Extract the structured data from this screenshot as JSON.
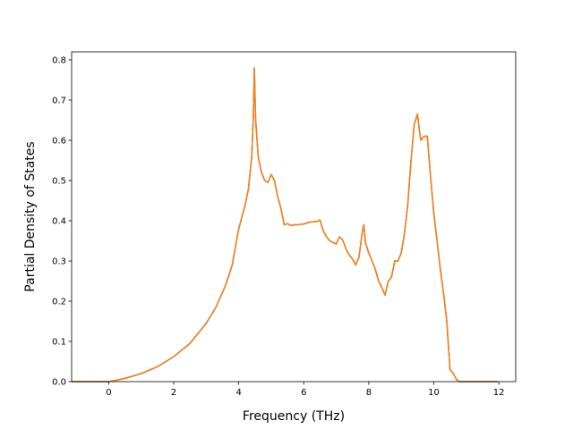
{
  "chart_data": {
    "type": "line",
    "title": "",
    "xlabel": "Frequency (THz)",
    "ylabel": "Partial Density of States",
    "xlim": [
      -1.14,
      12.52
    ],
    "ylim": [
      0.0,
      0.82
    ],
    "xticks": [
      0,
      2,
      4,
      6,
      8,
      10,
      12
    ],
    "xtick_labels": [
      "0",
      "2",
      "4",
      "6",
      "8",
      "10",
      "12"
    ],
    "yticks": [
      0.0,
      0.1,
      0.2,
      0.3,
      0.4,
      0.5,
      0.6,
      0.7,
      0.8
    ],
    "ytick_labels": [
      "0.0",
      "0.1",
      "0.2",
      "0.3",
      "0.4",
      "0.5",
      "0.6",
      "0.7",
      "0.8"
    ],
    "grid": false,
    "legend": "none",
    "series": [
      {
        "color": "#1f77b4",
        "x": [
          -1.12,
          -0.5,
          0.0,
          0.2,
          0.5,
          1.0,
          1.5,
          2.0,
          2.5,
          3.0,
          3.3,
          3.6,
          3.8,
          4.0,
          4.1,
          4.2,
          4.3,
          4.4,
          4.45,
          4.48,
          4.52,
          4.6,
          4.7,
          4.8,
          4.9,
          5.0,
          5.1,
          5.2,
          5.3,
          5.4,
          5.5,
          5.6,
          5.7,
          5.8,
          6.0,
          6.2,
          6.4,
          6.5,
          6.6,
          6.7,
          6.8,
          7.0,
          7.1,
          7.2,
          7.3,
          7.4,
          7.5,
          7.6,
          7.7,
          7.8,
          7.85,
          7.9,
          8.0,
          8.1,
          8.2,
          8.3,
          8.4,
          8.5,
          8.6,
          8.7,
          8.8,
          8.9,
          9.0,
          9.1,
          9.2,
          9.3,
          9.4,
          9.5,
          9.55,
          9.6,
          9.65,
          9.7,
          9.8,
          9.9,
          10.0,
          10.1,
          10.2,
          10.3,
          10.4,
          10.5,
          10.55,
          10.6,
          10.7,
          10.8,
          11.0,
          11.5,
          11.95
        ],
        "y": [
          0.0,
          0.0,
          0.0,
          0.003,
          0.008,
          0.02,
          0.037,
          0.062,
          0.095,
          0.145,
          0.185,
          0.24,
          0.29,
          0.38,
          0.41,
          0.44,
          0.48,
          0.56,
          0.66,
          0.78,
          0.65,
          0.56,
          0.52,
          0.5,
          0.495,
          0.515,
          0.5,
          0.46,
          0.43,
          0.39,
          0.393,
          0.388,
          0.39,
          0.39,
          0.392,
          0.397,
          0.398,
          0.402,
          0.375,
          0.36,
          0.35,
          0.342,
          0.36,
          0.352,
          0.33,
          0.315,
          0.305,
          0.29,
          0.31,
          0.37,
          0.39,
          0.345,
          0.32,
          0.3,
          0.28,
          0.25,
          0.235,
          0.215,
          0.25,
          0.26,
          0.3,
          0.3,
          0.32,
          0.37,
          0.44,
          0.55,
          0.64,
          0.665,
          0.63,
          0.6,
          0.605,
          0.61,
          0.61,
          0.51,
          0.42,
          0.35,
          0.28,
          0.22,
          0.15,
          0.03,
          0.025,
          0.02,
          0.005,
          0.0,
          0.0,
          0.0,
          0.0
        ]
      },
      {
        "color": "#ff7f0e",
        "x": [
          -1.12,
          -0.5,
          0.0,
          0.2,
          0.5,
          1.0,
          1.5,
          2.0,
          2.5,
          3.0,
          3.3,
          3.6,
          3.8,
          4.0,
          4.1,
          4.2,
          4.3,
          4.4,
          4.45,
          4.48,
          4.52,
          4.6,
          4.7,
          4.8,
          4.9,
          5.0,
          5.1,
          5.2,
          5.3,
          5.4,
          5.5,
          5.6,
          5.7,
          5.8,
          6.0,
          6.2,
          6.4,
          6.5,
          6.6,
          6.7,
          6.8,
          7.0,
          7.1,
          7.2,
          7.3,
          7.4,
          7.5,
          7.6,
          7.7,
          7.8,
          7.85,
          7.9,
          8.0,
          8.1,
          8.2,
          8.3,
          8.4,
          8.5,
          8.6,
          8.7,
          8.8,
          8.9,
          9.0,
          9.1,
          9.2,
          9.3,
          9.4,
          9.5,
          9.55,
          9.6,
          9.65,
          9.7,
          9.8,
          9.9,
          10.0,
          10.1,
          10.2,
          10.3,
          10.4,
          10.5,
          10.55,
          10.6,
          10.7,
          10.8,
          11.0,
          11.5,
          11.95
        ],
        "y": [
          0.0,
          0.0,
          0.0,
          0.003,
          0.008,
          0.02,
          0.037,
          0.062,
          0.095,
          0.145,
          0.185,
          0.24,
          0.29,
          0.38,
          0.41,
          0.44,
          0.48,
          0.56,
          0.66,
          0.78,
          0.65,
          0.56,
          0.52,
          0.5,
          0.495,
          0.515,
          0.5,
          0.46,
          0.43,
          0.39,
          0.393,
          0.388,
          0.39,
          0.39,
          0.392,
          0.397,
          0.398,
          0.402,
          0.375,
          0.36,
          0.35,
          0.342,
          0.36,
          0.352,
          0.33,
          0.315,
          0.305,
          0.29,
          0.31,
          0.37,
          0.39,
          0.345,
          0.32,
          0.3,
          0.28,
          0.25,
          0.235,
          0.215,
          0.25,
          0.26,
          0.3,
          0.3,
          0.32,
          0.37,
          0.44,
          0.55,
          0.64,
          0.665,
          0.63,
          0.6,
          0.605,
          0.61,
          0.61,
          0.51,
          0.42,
          0.35,
          0.28,
          0.22,
          0.15,
          0.03,
          0.025,
          0.02,
          0.005,
          0.0,
          0.0,
          0.0,
          0.0
        ]
      }
    ]
  }
}
